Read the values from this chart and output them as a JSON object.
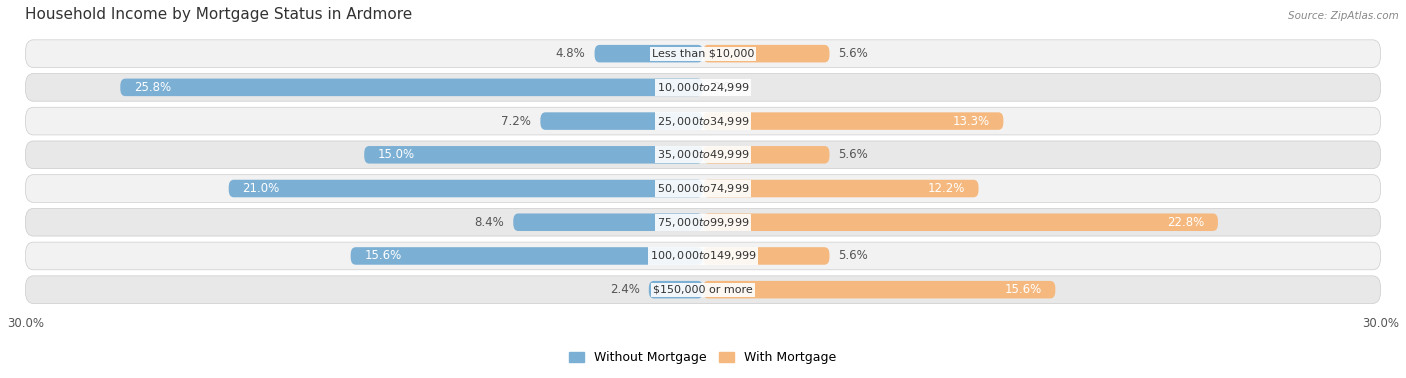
{
  "title": "Household Income by Mortgage Status in Ardmore",
  "source": "Source: ZipAtlas.com",
  "categories": [
    "Less than $10,000",
    "$10,000 to $24,999",
    "$25,000 to $34,999",
    "$35,000 to $49,999",
    "$50,000 to $74,999",
    "$75,000 to $99,999",
    "$100,000 to $149,999",
    "$150,000 or more"
  ],
  "without_mortgage": [
    4.8,
    25.8,
    7.2,
    15.0,
    21.0,
    8.4,
    15.6,
    2.4
  ],
  "with_mortgage": [
    5.6,
    0.0,
    13.3,
    5.6,
    12.2,
    22.8,
    5.6,
    15.6
  ],
  "xlim": 30.0,
  "color_without": "#7bafd4",
  "color_with": "#f5b97f",
  "bar_height": 0.52,
  "row_bg_light": "#f2f2f2",
  "row_bg_dark": "#e8e8e8",
  "title_fontsize": 11,
  "label_fontsize": 8.5,
  "axis_fontsize": 8.5,
  "legend_fontsize": 9,
  "cat_label_fontsize": 8.0
}
